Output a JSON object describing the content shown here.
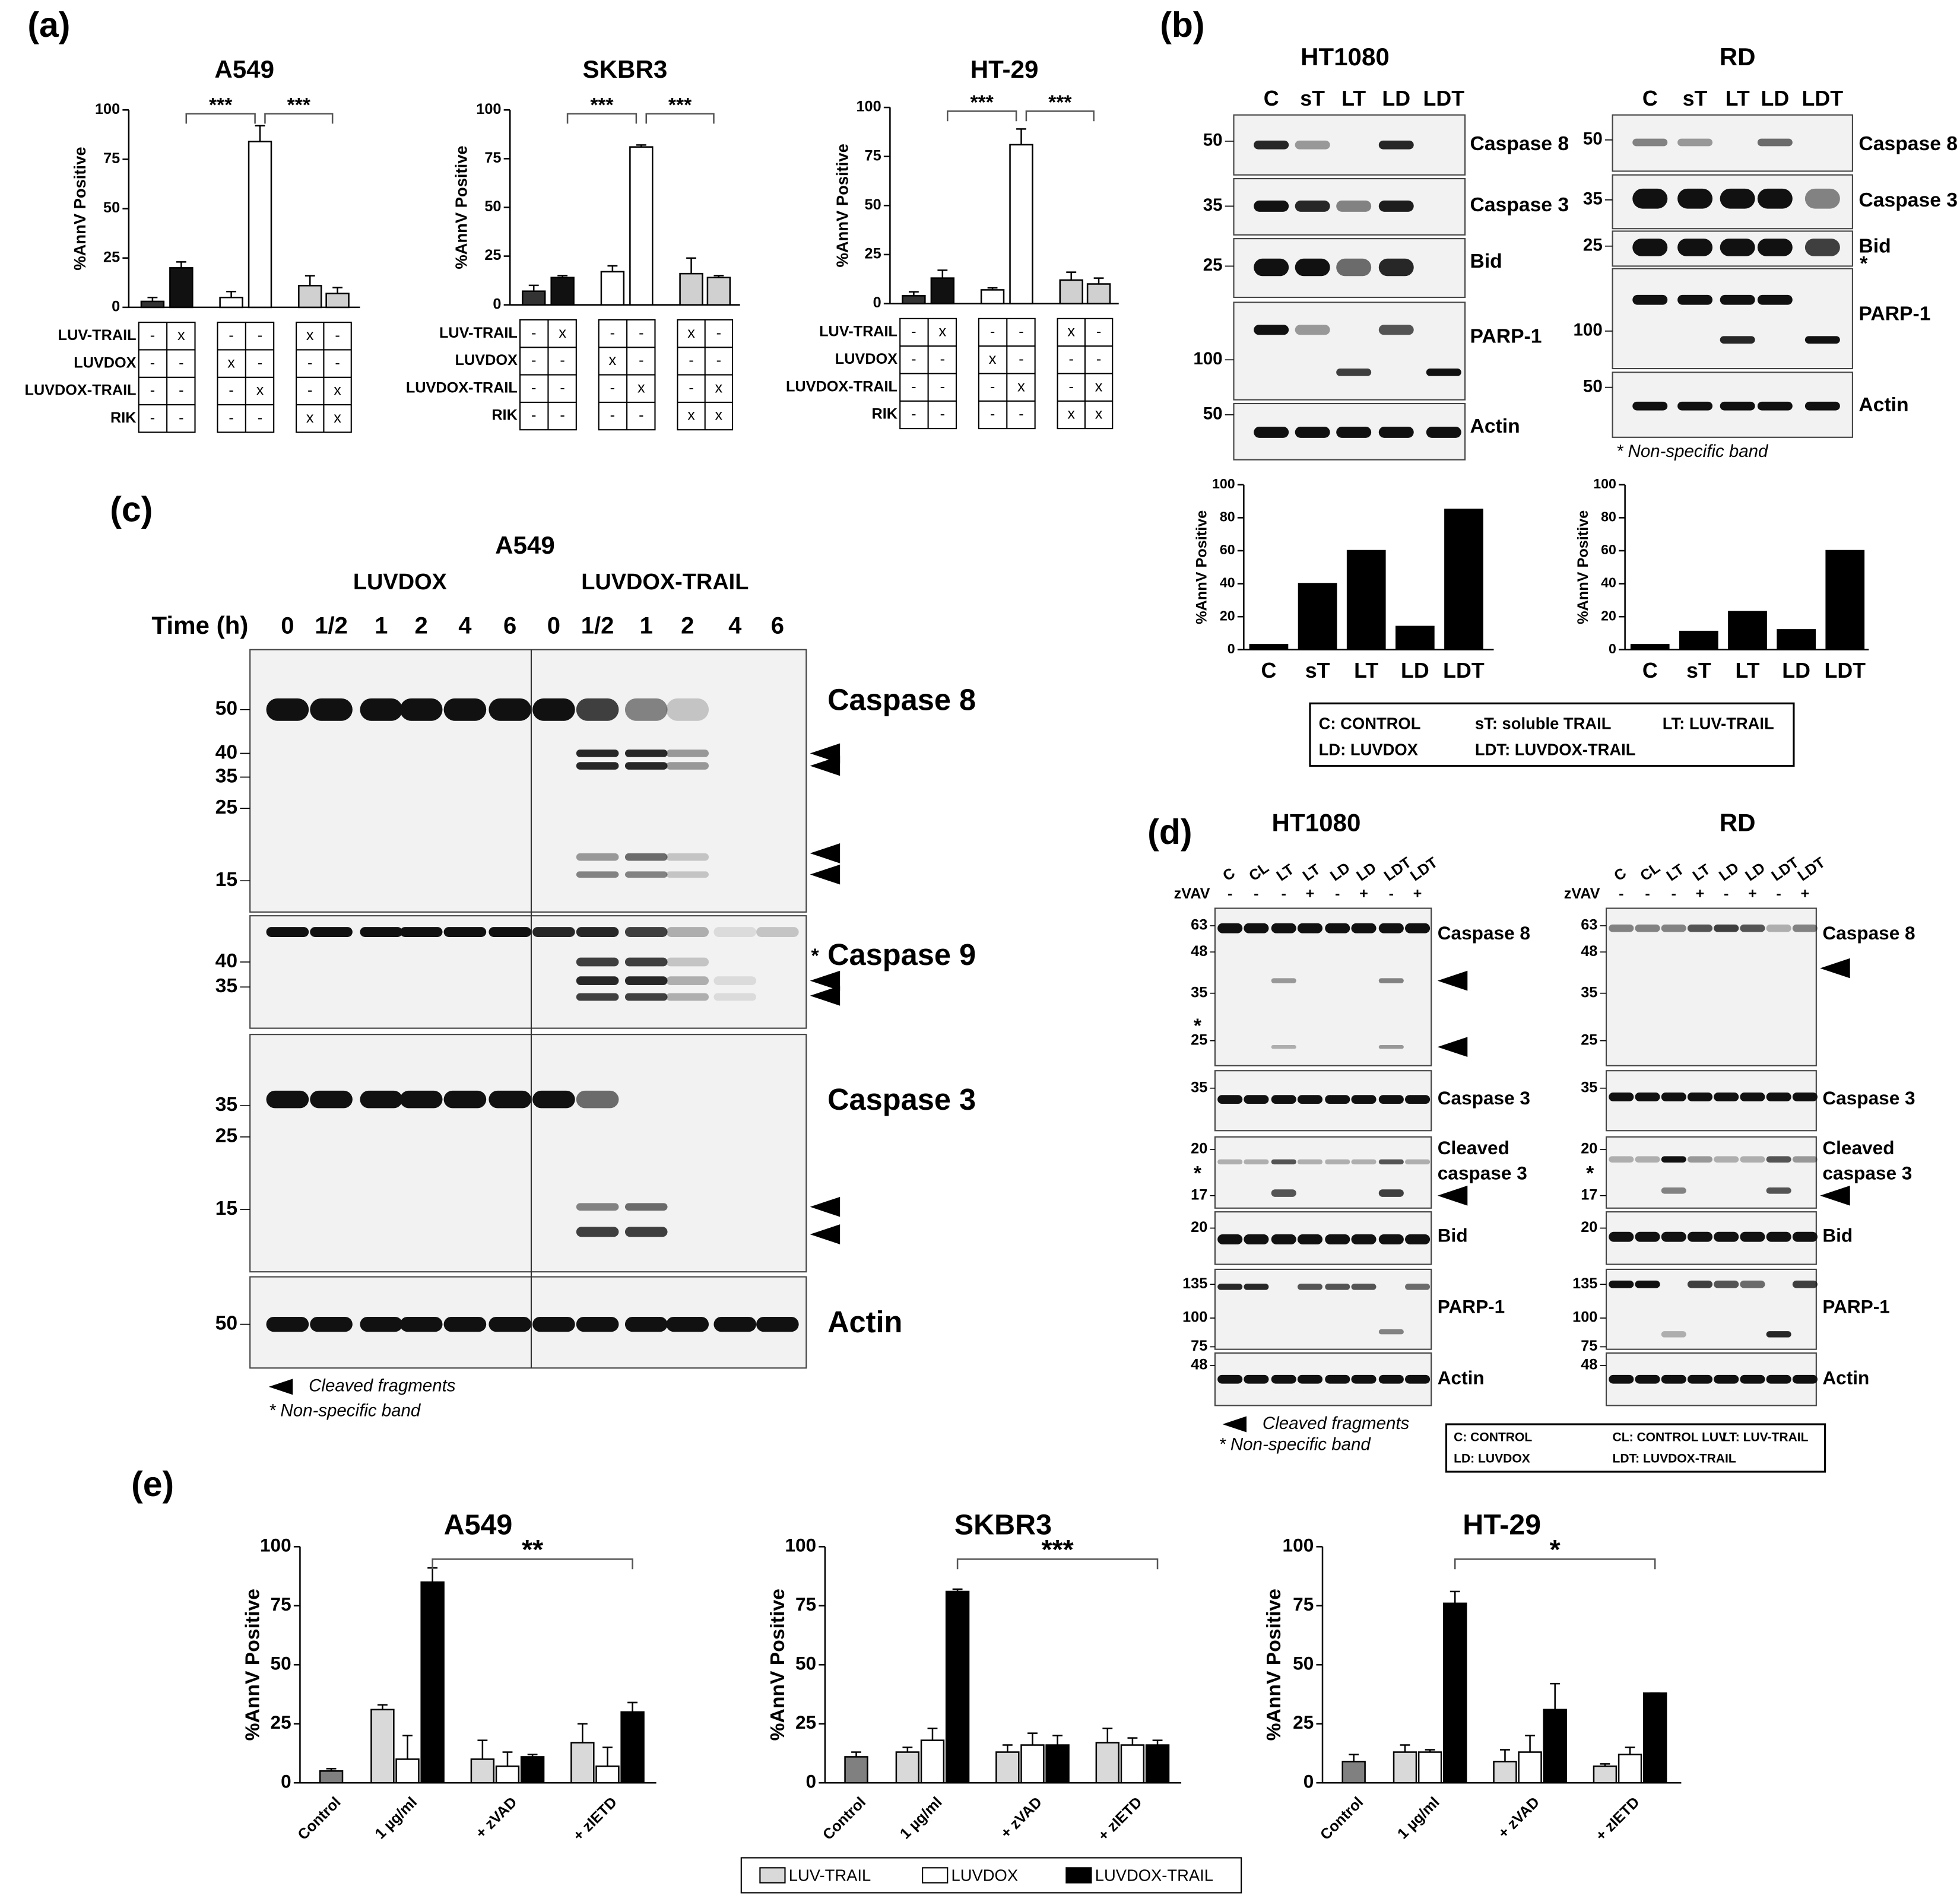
{
  "panel_labels": [
    "(a)",
    "(b)",
    "(c)",
    "(d)",
    "(e)"
  ],
  "chart_data": [
    {
      "type": "bar",
      "title": "A549",
      "ylabel": "%AnnV Positive",
      "values": [
        3,
        20,
        5,
        84,
        11,
        7
      ],
      "errors": [
        2,
        3,
        3,
        8,
        5,
        3
      ],
      "colors": [
        "#333333",
        "#111111",
        "#ffffff",
        "#ffffff",
        "#d0d0d0",
        "#d0d0d0"
      ],
      "ylim": [
        0,
        100
      ],
      "yticks": [
        0,
        25,
        50,
        75,
        100
      ],
      "significance": [
        "***",
        "***"
      ],
      "treatments": {
        "rows": [
          "LUV-TRAIL",
          "LUVDOX",
          "LUVDOX-TRAIL",
          "RIK"
        ],
        "cells": [
          [
            "-",
            "x",
            "-",
            "-",
            "x",
            "-"
          ],
          [
            "-",
            "-",
            "x",
            "-",
            "-",
            "-"
          ],
          [
            "-",
            "-",
            "-",
            "x",
            "-",
            "x"
          ],
          [
            "-",
            "-",
            "-",
            "-",
            "x",
            "x"
          ]
        ]
      }
    },
    {
      "type": "bar",
      "title": "SKBR3",
      "ylabel": "%AnnV Positive",
      "values": [
        7,
        14,
        17,
        81,
        16,
        14
      ],
      "errors": [
        3,
        1,
        3,
        1,
        8,
        1
      ],
      "colors": [
        "#333333",
        "#111111",
        "#ffffff",
        "#ffffff",
        "#d0d0d0",
        "#d0d0d0"
      ],
      "ylim": [
        0,
        100
      ],
      "yticks": [
        0,
        25,
        50,
        75,
        100
      ],
      "significance": [
        "***",
        "***"
      ],
      "treatments": {
        "rows": [
          "LUV-TRAIL",
          "LUVDOX",
          "LUVDOX-TRAIL",
          "RIK"
        ],
        "cells": [
          [
            "-",
            "x",
            "-",
            "-",
            "x",
            "-"
          ],
          [
            "-",
            "-",
            "x",
            "-",
            "-",
            "-"
          ],
          [
            "-",
            "-",
            "-",
            "x",
            "-",
            "x"
          ],
          [
            "-",
            "-",
            "-",
            "-",
            "x",
            "x"
          ]
        ]
      }
    },
    {
      "type": "bar",
      "title": "HT-29",
      "ylabel": "%AnnV Positive",
      "values": [
        4,
        13,
        7,
        81,
        12,
        10
      ],
      "errors": [
        2,
        4,
        1,
        8,
        4,
        3
      ],
      "colors": [
        "#333333",
        "#111111",
        "#ffffff",
        "#ffffff",
        "#d0d0d0",
        "#d0d0d0"
      ],
      "ylim": [
        0,
        100
      ],
      "yticks": [
        0,
        25,
        50,
        75,
        100
      ],
      "significance": [
        "***",
        "***"
      ],
      "treatments": {
        "rows": [
          "LUV-TRAIL",
          "LUVDOX",
          "LUVDOX-TRAIL",
          "RIK"
        ],
        "cells": [
          [
            "-",
            "x",
            "-",
            "-",
            "x",
            "-"
          ],
          [
            "-",
            "-",
            "x",
            "-",
            "-",
            "-"
          ],
          [
            "-",
            "-",
            "-",
            "x",
            "-",
            "x"
          ],
          [
            "-",
            "-",
            "-",
            "-",
            "x",
            "x"
          ]
        ]
      }
    },
    {
      "type": "bar",
      "ylabel": "%AnnV Positive",
      "categories": [
        "C",
        "sT",
        "LT",
        "LD",
        "LDT"
      ],
      "values": [
        3,
        40,
        60,
        14,
        85
      ],
      "color": "#000000",
      "ylim": [
        0,
        100
      ],
      "yticks": [
        0,
        20,
        40,
        60,
        80,
        100
      ]
    },
    {
      "type": "bar",
      "ylabel": "%AnnV Positive",
      "categories": [
        "C",
        "sT",
        "LT",
        "LD",
        "LDT"
      ],
      "values": [
        3,
        11,
        23,
        12,
        60
      ],
      "color": "#000000",
      "ylim": [
        0,
        100
      ],
      "yticks": [
        0,
        20,
        40,
        60,
        80,
        100
      ]
    },
    {
      "type": "grouped_bar",
      "title": "A549",
      "ylabel": "%AnnV Positive",
      "categories": [
        "Control",
        "1 µg/ml",
        "+ zVAD",
        "+ zIETD"
      ],
      "control": {
        "value": 5,
        "error": 1,
        "color": "#808080"
      },
      "series": [
        {
          "name": "LUV-TRAIL",
          "color": "#d9d9d9",
          "values": [
            null,
            31,
            10,
            17
          ],
          "errors": [
            null,
            2,
            8,
            8
          ]
        },
        {
          "name": "LUVDOX",
          "color": "#ffffff",
          "values": [
            null,
            10,
            7,
            7
          ],
          "errors": [
            null,
            10,
            6,
            8
          ]
        },
        {
          "name": "LUVDOX-TRAIL",
          "color": "#000000",
          "values": [
            null,
            85,
            11,
            30
          ],
          "errors": [
            null,
            6,
            1,
            4
          ]
        }
      ],
      "ylim": [
        0,
        100
      ],
      "yticks": [
        0,
        25,
        50,
        75,
        100
      ],
      "significance": "**"
    },
    {
      "type": "grouped_bar",
      "title": "SKBR3",
      "ylabel": "%AnnV Positive",
      "categories": [
        "Control",
        "1 µg/ml",
        "+ zVAD",
        "+ zIETD"
      ],
      "control": {
        "value": 11,
        "error": 2,
        "color": "#808080"
      },
      "series": [
        {
          "name": "LUV-TRAIL",
          "color": "#d9d9d9",
          "values": [
            null,
            13,
            13,
            17
          ],
          "errors": [
            null,
            2,
            3,
            6
          ]
        },
        {
          "name": "LUVDOX",
          "color": "#ffffff",
          "values": [
            null,
            18,
            16,
            16
          ],
          "errors": [
            null,
            5,
            5,
            3
          ]
        },
        {
          "name": "LUVDOX-TRAIL",
          "color": "#000000",
          "values": [
            null,
            81,
            16,
            16
          ],
          "errors": [
            null,
            1,
            4,
            2
          ]
        }
      ],
      "ylim": [
        0,
        100
      ],
      "yticks": [
        0,
        25,
        50,
        75,
        100
      ],
      "significance": "***"
    },
    {
      "type": "grouped_bar",
      "title": "HT-29",
      "ylabel": "%AnnV Positive",
      "categories": [
        "Control",
        "1 µg/ml",
        "+ zVAD",
        "+ zIETD"
      ],
      "control": {
        "value": 9,
        "error": 3,
        "color": "#808080"
      },
      "series": [
        {
          "name": "LUV-TRAIL",
          "color": "#d9d9d9",
          "values": [
            null,
            13,
            9,
            7
          ],
          "errors": [
            null,
            3,
            5,
            1
          ]
        },
        {
          "name": "LUVDOX",
          "color": "#ffffff",
          "values": [
            null,
            13,
            13,
            12
          ],
          "errors": [
            null,
            1,
            7,
            3
          ]
        },
        {
          "name": "LUVDOX-TRAIL",
          "color": "#000000",
          "values": [
            null,
            76,
            31,
            38
          ],
          "errors": [
            null,
            5,
            11,
            0
          ]
        }
      ],
      "ylim": [
        0,
        100
      ],
      "yticks": [
        0,
        25,
        50,
        75,
        100
      ],
      "significance": "*"
    }
  ],
  "panel_b": {
    "blots": [
      {
        "title": "HT1080",
        "lanes": [
          "C",
          "sT",
          "LT",
          "LD",
          "LDT"
        ],
        "rows": [
          {
            "protein": "Caspase 8",
            "markers": [
              50
            ]
          },
          {
            "protein": "Caspase 3",
            "markers": [
              35
            ]
          },
          {
            "protein": "Bid",
            "markers": [
              25
            ]
          },
          {
            "protein": "PARP-1",
            "markers": [
              100
            ]
          },
          {
            "protein": "Actin",
            "markers": [
              50
            ]
          }
        ]
      },
      {
        "title": "RD",
        "lanes": [
          "C",
          "sT",
          "LT",
          "LD",
          "LDT"
        ],
        "rows": [
          {
            "protein": "Caspase 8",
            "markers": [
              50
            ]
          },
          {
            "protein": "Caspase 3",
            "markers": [
              35
            ]
          },
          {
            "protein": "Bid",
            "markers": [
              25
            ],
            "star": "*"
          },
          {
            "protein": "PARP-1",
            "markers": [
              100
            ]
          },
          {
            "protein": "Actin",
            "markers": [
              50
            ]
          }
        ]
      }
    ],
    "note": "* Non-specific band",
    "legend": [
      "C: CONTROL",
      "sT: soluble TRAIL",
      "LT: LUV-TRAIL",
      "LD: LUVDOX",
      "LDT: LUVDOX-TRAIL"
    ]
  },
  "panel_c": {
    "title": "A549",
    "groups": [
      "LUVDOX",
      "LUVDOX-TRAIL"
    ],
    "time_label": "Time (h)",
    "times": [
      "0",
      "1/2",
      "1",
      "2",
      "4",
      "6",
      "0",
      "1/2",
      "1",
      "2",
      "4",
      "6"
    ],
    "rows": [
      {
        "protein": "Caspase 8",
        "markers": [
          50,
          40,
          35,
          25,
          15
        ]
      },
      {
        "protein": "Caspase 9",
        "markers": [
          40,
          35
        ],
        "star": "*"
      },
      {
        "protein": "Caspase 3",
        "markers": [
          35,
          25,
          15
        ]
      },
      {
        "protein": "Actin",
        "markers": [
          50
        ]
      }
    ],
    "arrow_note": "Cleaved fragments",
    "star_note": "* Non-specific band"
  },
  "panel_d": {
    "blots": [
      {
        "title": "HT1080",
        "lanes": [
          "C",
          "CL",
          "LT",
          "LT",
          "LD",
          "LD",
          "LDT",
          "LDT"
        ],
        "treatment": "zVAV",
        "treatment_marks": [
          "-",
          "-",
          "-",
          "+",
          "-",
          "+",
          "-",
          "+"
        ],
        "rows": [
          {
            "protein": "Caspase 8",
            "markers": [
              63,
              48,
              35,
              25
            ],
            "star": "*"
          },
          {
            "protein": "Caspase 3",
            "markers": [
              35
            ]
          },
          {
            "protein": [
              "Cleaved",
              "caspase 3"
            ],
            "markers": [
              20,
              17
            ],
            "star": "*"
          },
          {
            "protein": "Bid",
            "markers": [
              20
            ]
          },
          {
            "protein": "PARP-1",
            "markers": [
              135,
              100,
              75
            ]
          },
          {
            "protein": "Actin",
            "markers": [
              48
            ]
          }
        ]
      },
      {
        "title": "RD",
        "lanes": [
          "C",
          "CL",
          "LT",
          "LT",
          "LD",
          "LD",
          "LDT",
          "LDT"
        ],
        "treatment": "zVAV",
        "treatment_marks": [
          "-",
          "-",
          "-",
          "+",
          "-",
          "+",
          "-",
          "+"
        ],
        "rows": [
          {
            "protein": "Caspase 8",
            "markers": [
              63,
              48,
              35,
              25
            ]
          },
          {
            "protein": "Caspase 3",
            "markers": [
              35
            ]
          },
          {
            "protein": [
              "Cleaved",
              "caspase 3"
            ],
            "markers": [
              20,
              17
            ],
            "star": "*"
          },
          {
            "protein": "Bid",
            "markers": [
              20
            ]
          },
          {
            "protein": "PARP-1",
            "markers": [
              135,
              100,
              75
            ]
          },
          {
            "protein": "Actin",
            "markers": [
              48
            ]
          }
        ]
      }
    ],
    "arrow_note": "Cleaved fragments",
    "star_note": "* Non-specific band",
    "legend": [
      "C: CONTROL",
      "CL: CONTROL LUV",
      "LT: LUV-TRAIL",
      "LD: LUVDOX",
      "LDT: LUVDOX-TRAIL"
    ]
  }
}
